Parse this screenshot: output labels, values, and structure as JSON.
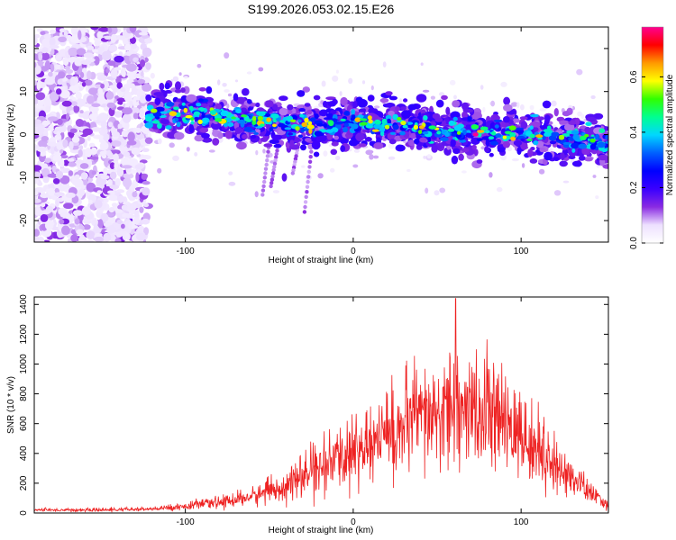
{
  "figure": {
    "title": "S199.2026.053.02.15.E26"
  },
  "chart_data": [
    {
      "type": "heatmap",
      "title": "S199.2026.053.02.15.E26",
      "xlabel": "Height of straight line (km)",
      "ylabel": "Frequency (Hz)",
      "xlim": [
        -190,
        152
      ],
      "ylim": [
        -25,
        25
      ],
      "xticks": [
        -100,
        0,
        100
      ],
      "yticks": [
        -20,
        -10,
        0,
        10,
        20
      ],
      "xtick_labels": [
        "-100",
        "0",
        "100"
      ],
      "ytick_labels": [
        "-20",
        "-10",
        "0",
        "10",
        "20"
      ],
      "trend": {
        "x": [
          -122,
          -100,
          -80,
          -60,
          -40,
          -20,
          0,
          20,
          40,
          60,
          80,
          100,
          120,
          150
        ],
        "freq": [
          4.5,
          5.0,
          4.0,
          3.0,
          2.5,
          2.0,
          3.0,
          2.5,
          1.5,
          1.0,
          0.5,
          0.0,
          -0.5,
          -2.0
        ]
      },
      "noise_region_x": [
        -190,
        -122
      ],
      "peak": {
        "x": 73,
        "freq": 0,
        "amplitude": 0.78
      },
      "colorbar": {
        "label": "Normalized spectral amplitude",
        "range": [
          0.0,
          0.78
        ],
        "ticks": [
          0.0,
          0.2,
          0.4,
          0.6
        ],
        "tick_labels": [
          "0.0",
          "0.2",
          "0.4",
          "0.6"
        ],
        "colors": [
          "#ffffff",
          "#ede0ff",
          "#8a2be2",
          "#3a00ff",
          "#0000ff",
          "#0060ff",
          "#00d7ff",
          "#00ff90",
          "#30ff00",
          "#ffff00",
          "#ff9900",
          "#ff0000",
          "#ff0090"
        ]
      }
    },
    {
      "type": "line",
      "title": "",
      "xlabel": "Height of straight line (km)",
      "ylabel": "SNR (10 * v/v)",
      "xlim": [
        -190,
        152
      ],
      "ylim": [
        0,
        1450
      ],
      "xticks": [
        -100,
        0,
        100
      ],
      "yticks": [
        0,
        200,
        400,
        600,
        800,
        1000,
        1200,
        1400
      ],
      "xtick_labels": [
        "-100",
        "0",
        "100"
      ],
      "ytick_labels": [
        "0",
        "200",
        "400",
        "600",
        "800",
        "1000",
        "1200",
        "1400"
      ],
      "color": "#ee2222",
      "envelope": {
        "x": [
          -190,
          -150,
          -120,
          -100,
          -80,
          -60,
          -40,
          -20,
          0,
          20,
          40,
          60,
          80,
          100,
          120,
          140,
          152
        ],
        "y": [
          20,
          20,
          25,
          45,
          70,
          110,
          180,
          300,
          400,
          520,
          620,
          680,
          650,
          520,
          320,
          150,
          40
        ]
      },
      "peak": {
        "x": 61,
        "y": 1440
      }
    }
  ]
}
